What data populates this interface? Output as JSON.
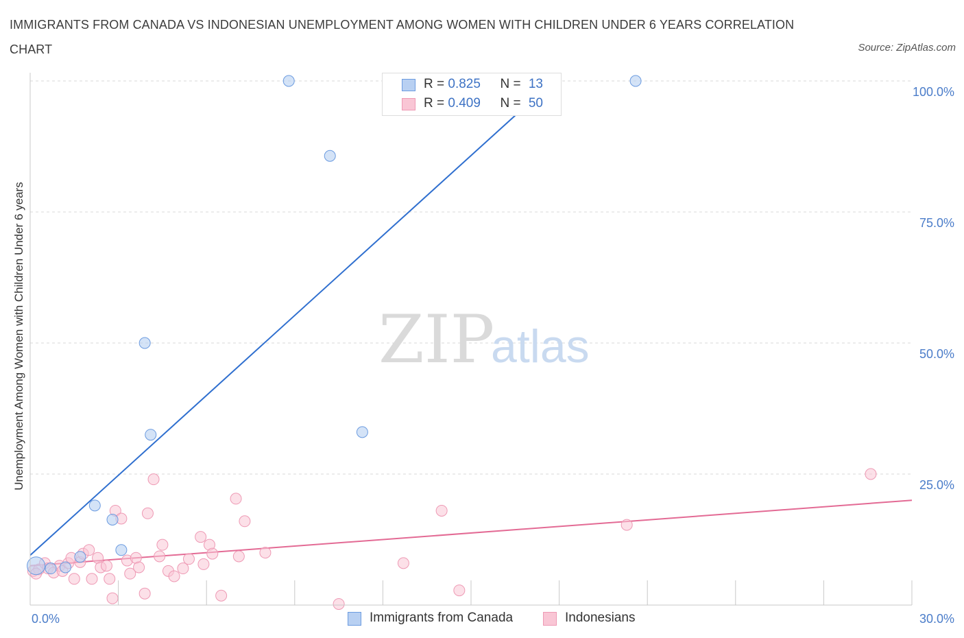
{
  "header": {
    "title": "IMMIGRANTS FROM CANADA VS INDONESIAN UNEMPLOYMENT AMONG WOMEN WITH CHILDREN UNDER 6 YEARS CORRELATION CHART",
    "source": "Source: ZipAtlas.com"
  },
  "watermark": {
    "zip": "ZIP",
    "atlas": "atlas"
  },
  "legend": {
    "rows": [
      {
        "r_label": "R = ",
        "r_value": "0.825",
        "n_label": "N = ",
        "n_value": "13"
      },
      {
        "r_label": "R = ",
        "r_value": "0.409",
        "n_label": "N = ",
        "n_value": "50"
      }
    ]
  },
  "colors": {
    "canada_fill": "#b8d0f2",
    "canada_stroke": "#6b9be0",
    "canada_line": "#2f6fcf",
    "indonesian_fill": "#f9c6d5",
    "indonesian_stroke": "#ee99b4",
    "indonesian_line": "#e36a94",
    "grid": "#d8d8d8",
    "axis_label": "#4a7cc9"
  },
  "chart_data": {
    "type": "scatter",
    "title": "IMMIGRANTS FROM CANADA VS INDONESIAN UNEMPLOYMENT AMONG WOMEN WITH CHILDREN UNDER 6 YEARS CORRELATION CHART",
    "xlabel": "",
    "ylabel": "Unemployment Among Women with Children Under 6 years",
    "xlim": [
      0,
      30
    ],
    "ylim": [
      0,
      100
    ],
    "x_tick_labels": [
      "0.0%",
      "30.0%"
    ],
    "y_tick_labels": [
      "100.0%",
      "75.0%",
      "50.0%",
      "25.0%"
    ],
    "y_tick_values": [
      100,
      75,
      50,
      25
    ],
    "grid": true,
    "legend_placement": "top-center and bottom",
    "series": [
      {
        "name": "Immigrants from Canada",
        "r": 0.825,
        "n": 13,
        "trend": {
          "x": [
            0.0,
            17.8
          ],
          "y": [
            9.5,
            100.0
          ]
        },
        "points": [
          {
            "x": 0.2,
            "y": 7.5
          },
          {
            "x": 0.7,
            "y": 7.0
          },
          {
            "x": 1.2,
            "y": 7.2
          },
          {
            "x": 1.7,
            "y": 9.2
          },
          {
            "x": 2.2,
            "y": 19.0
          },
          {
            "x": 2.8,
            "y": 16.3
          },
          {
            "x": 3.1,
            "y": 10.5
          },
          {
            "x": 3.9,
            "y": 50.0
          },
          {
            "x": 4.1,
            "y": 32.5
          },
          {
            "x": 8.8,
            "y": 100.0
          },
          {
            "x": 10.2,
            "y": 85.7
          },
          {
            "x": 11.3,
            "y": 33.0
          },
          {
            "x": 20.6,
            "y": 100.0
          }
        ]
      },
      {
        "name": "Indonesians",
        "r": 0.409,
        "n": 50,
        "trend": {
          "x": [
            0.0,
            30.0
          ],
          "y": [
            7.5,
            20.0
          ]
        },
        "points": [
          {
            "x": 0.1,
            "y": 6.5
          },
          {
            "x": 0.3,
            "y": 6.8
          },
          {
            "x": 0.5,
            "y": 8.0
          },
          {
            "x": 0.6,
            "y": 7.0
          },
          {
            "x": 0.8,
            "y": 6.2
          },
          {
            "x": 1.0,
            "y": 7.5
          },
          {
            "x": 1.1,
            "y": 6.5
          },
          {
            "x": 1.3,
            "y": 8.0
          },
          {
            "x": 1.4,
            "y": 9.0
          },
          {
            "x": 1.5,
            "y": 5.0
          },
          {
            "x": 1.7,
            "y": 8.2
          },
          {
            "x": 1.8,
            "y": 9.8
          },
          {
            "x": 2.0,
            "y": 10.5
          },
          {
            "x": 2.1,
            "y": 5.0
          },
          {
            "x": 2.3,
            "y": 9.0
          },
          {
            "x": 2.4,
            "y": 7.2
          },
          {
            "x": 2.6,
            "y": 7.5
          },
          {
            "x": 2.7,
            "y": 5.0
          },
          {
            "x": 2.8,
            "y": 1.3
          },
          {
            "x": 2.9,
            "y": 18.0
          },
          {
            "x": 3.1,
            "y": 16.5
          },
          {
            "x": 3.3,
            "y": 8.5
          },
          {
            "x": 3.4,
            "y": 6.0
          },
          {
            "x": 3.6,
            "y": 9.0
          },
          {
            "x": 3.7,
            "y": 7.2
          },
          {
            "x": 3.9,
            "y": 2.2
          },
          {
            "x": 4.0,
            "y": 17.5
          },
          {
            "x": 4.2,
            "y": 24.0
          },
          {
            "x": 4.4,
            "y": 9.3
          },
          {
            "x": 4.5,
            "y": 11.5
          },
          {
            "x": 4.7,
            "y": 6.5
          },
          {
            "x": 4.9,
            "y": 5.5
          },
          {
            "x": 5.2,
            "y": 7.0
          },
          {
            "x": 5.4,
            "y": 8.8
          },
          {
            "x": 5.8,
            "y": 13.0
          },
          {
            "x": 5.9,
            "y": 7.8
          },
          {
            "x": 6.1,
            "y": 11.5
          },
          {
            "x": 6.2,
            "y": 9.8
          },
          {
            "x": 6.5,
            "y": 1.8
          },
          {
            "x": 7.0,
            "y": 20.3
          },
          {
            "x": 7.1,
            "y": 9.3
          },
          {
            "x": 7.3,
            "y": 16.0
          },
          {
            "x": 8.0,
            "y": 10.0
          },
          {
            "x": 10.5,
            "y": 0.2
          },
          {
            "x": 12.7,
            "y": 8.0
          },
          {
            "x": 14.0,
            "y": 18.0
          },
          {
            "x": 14.6,
            "y": 2.8
          },
          {
            "x": 20.3,
            "y": 15.3
          },
          {
            "x": 28.6,
            "y": 25.0
          },
          {
            "x": 0.2,
            "y": 6.0
          }
        ]
      }
    ]
  }
}
